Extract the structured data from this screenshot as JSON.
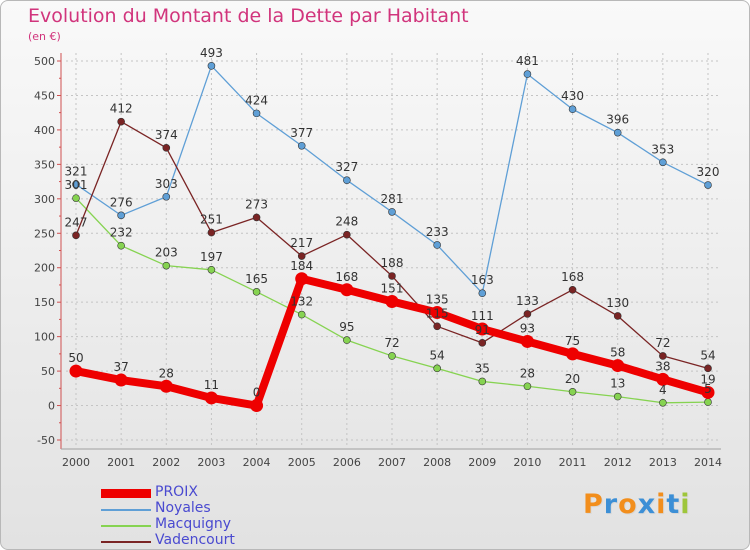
{
  "title": "Evolution du Montant de la Dette par Habitant",
  "unit": "(en €)",
  "brand": {
    "text": "Proxiti",
    "letter_colors": [
      "#f28e1c",
      "#3c8fd6",
      "#f28e1c",
      "#3c8fd6",
      "#f28e1c",
      "#3c8fd6",
      "#9ec63b"
    ]
  },
  "chart_data": {
    "type": "line",
    "x": [
      "2000",
      "2001",
      "2002",
      "2003",
      "2004",
      "2005",
      "2006",
      "2007",
      "2008",
      "2009",
      "2010",
      "2011",
      "2012",
      "2013",
      "2014"
    ],
    "ylim": [
      -50,
      500
    ],
    "yticks": [
      "-50",
      "0",
      "50",
      "100",
      "150",
      "200",
      "250",
      "300",
      "350",
      "400",
      "450",
      "500"
    ],
    "grid": "dotted",
    "legend_position": "bottom-left",
    "series": [
      {
        "name": "PROIX",
        "color": "#ee0000",
        "thick": true,
        "values": [
          50,
          37,
          28,
          11,
          0,
          184,
          168,
          151,
          135,
          111,
          93,
          75,
          58,
          38,
          19
        ]
      },
      {
        "name": "Noyales",
        "color": "#5f9fd6",
        "thick": false,
        "values": [
          321,
          276,
          303,
          493,
          424,
          377,
          327,
          281,
          233,
          163,
          481,
          430,
          396,
          353,
          320
        ]
      },
      {
        "name": "Macquigny",
        "color": "#86d351",
        "thick": false,
        "values": [
          301,
          232,
          203,
          197,
          165,
          132,
          95,
          72,
          54,
          35,
          28,
          20,
          13,
          4,
          5
        ]
      },
      {
        "name": "Vadencourt",
        "color": "#7a2424",
        "thick": false,
        "values": [
          247,
          412,
          374,
          251,
          273,
          217,
          248,
          188,
          115,
          91,
          133,
          168,
          130,
          72,
          54
        ]
      }
    ],
    "data_labels": {
      "PROIX": [
        "50",
        "37",
        "28",
        "11",
        "0",
        "184",
        "168",
        "151",
        "135",
        "111",
        "93",
        "75",
        "58",
        "38",
        "19"
      ],
      "Noyales": [
        "321",
        "276",
        "303",
        "493",
        "424",
        "377",
        "327",
        "281",
        "233",
        "163",
        "481",
        "430",
        "396",
        "353",
        "320"
      ],
      "Macquigny": [
        "301",
        "232",
        "203",
        "197",
        "165",
        "132",
        "95",
        "72",
        "54",
        "35",
        "28",
        "20",
        "13",
        "4",
        "5"
      ],
      "Vadencourt": [
        "247",
        "412",
        "374",
        "251",
        "273",
        "217",
        "248",
        "188",
        "115",
        "91",
        "133",
        "168",
        "130",
        "72",
        "54"
      ]
    }
  }
}
